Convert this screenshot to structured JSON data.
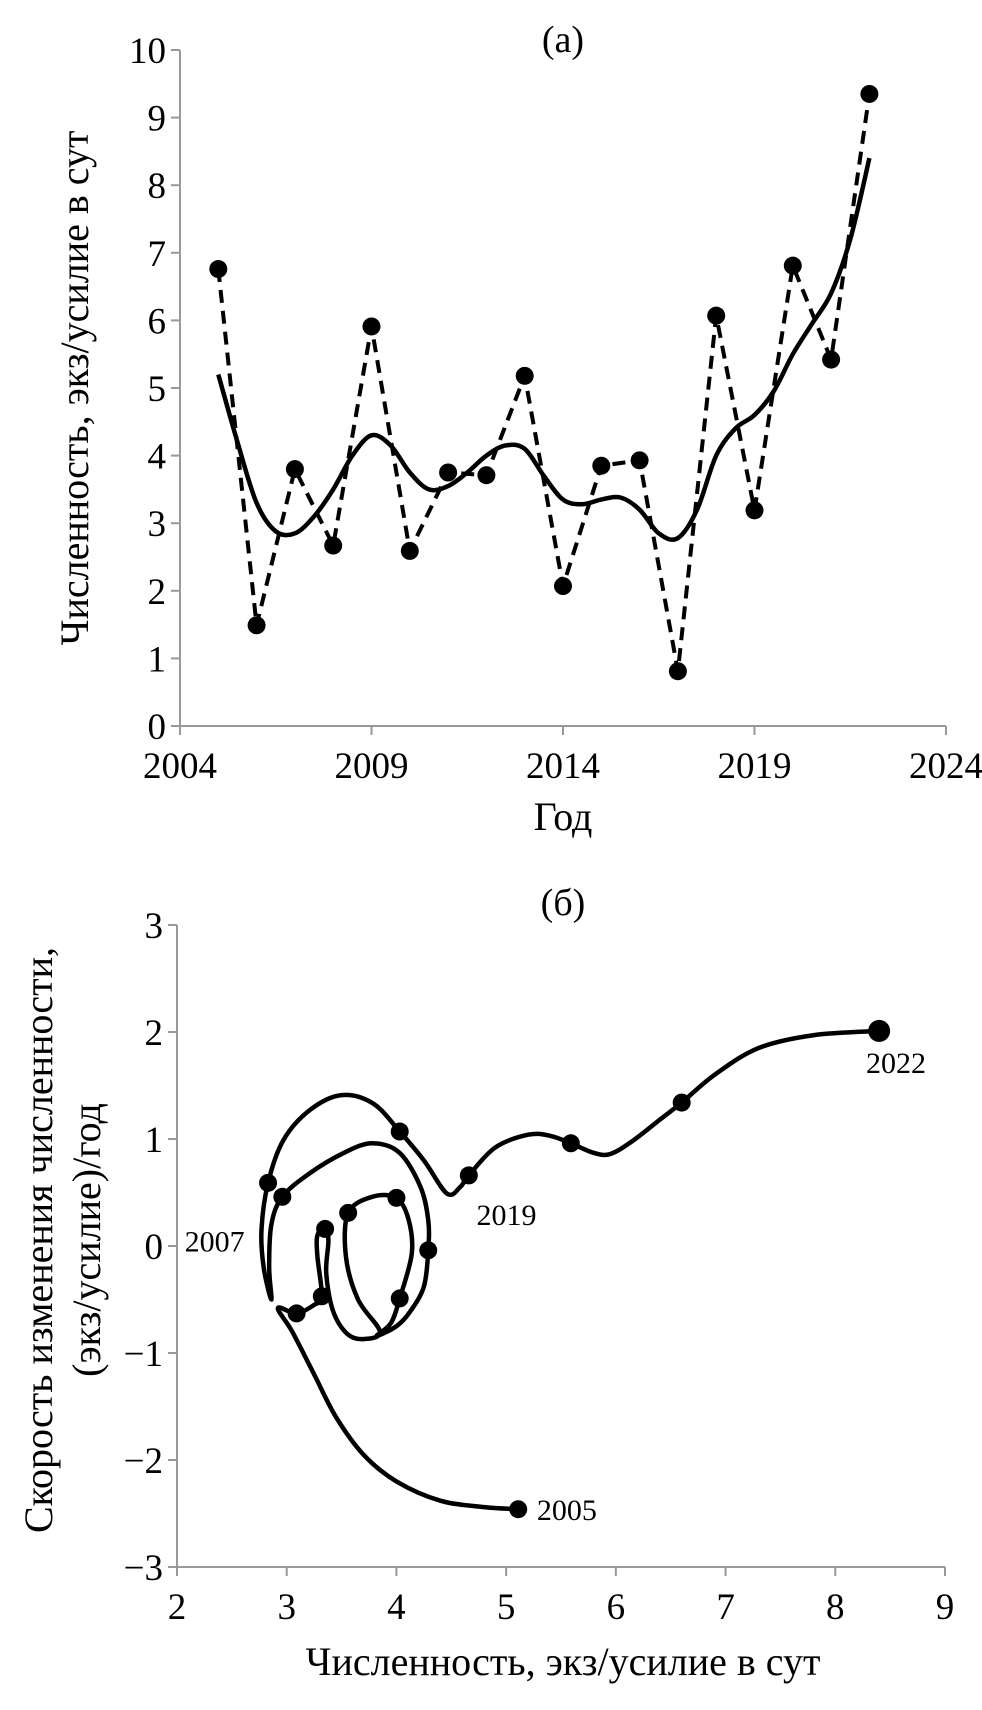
{
  "chart_data": [
    {
      "type": "line",
      "panel_label": "(а)",
      "xlabel": "Год",
      "ylabel": "Численность, экз/усилие в сут",
      "xlim": [
        2004,
        2024
      ],
      "ylim": [
        0,
        10
      ],
      "xticks": [
        2004,
        2009,
        2014,
        2019,
        2024
      ],
      "yticks": [
        0,
        1,
        2,
        3,
        4,
        5,
        6,
        7,
        8,
        9,
        10
      ],
      "grid": false,
      "series": [
        {
          "style": "dashed-with-markers",
          "x": [
            2005,
            2006,
            2007,
            2008,
            2009,
            2010,
            2011,
            2012,
            2013,
            2014,
            2015,
            2016,
            2017,
            2018,
            2019,
            2020,
            2021,
            2022
          ],
          "y": [
            6.76,
            1.49,
            3.8,
            2.67,
            5.91,
            2.59,
            3.75,
            3.71,
            5.18,
            2.07,
            3.85,
            3.93,
            0.81,
            6.07,
            3.19,
            6.81,
            5.42,
            9.35
          ]
        },
        {
          "style": "solid-smooth",
          "x": [
            2005,
            2005.5,
            2006,
            2006.5,
            2007,
            2007.5,
            2008,
            2008.5,
            2009,
            2009.5,
            2010,
            2010.5,
            2011,
            2011.5,
            2012,
            2012.5,
            2013,
            2013.5,
            2014,
            2014.5,
            2015,
            2015.5,
            2016,
            2016.5,
            2017,
            2017.5,
            2018,
            2018.5,
            2019,
            2019.5,
            2020,
            2020.5,
            2021,
            2021.5,
            2022
          ],
          "y": [
            5.2,
            4.2,
            3.3,
            2.88,
            2.85,
            3.1,
            3.5,
            4.0,
            4.3,
            4.15,
            3.75,
            3.5,
            3.55,
            3.75,
            4.0,
            4.15,
            4.1,
            3.7,
            3.35,
            3.28,
            3.35,
            3.38,
            3.2,
            2.85,
            2.78,
            3.2,
            4.0,
            4.4,
            4.6,
            4.95,
            5.5,
            5.95,
            6.4,
            7.2,
            8.4
          ]
        }
      ]
    },
    {
      "type": "line",
      "panel_label": "(б)",
      "xlabel": "Численность, экз/усилие в сут",
      "ylabel": [
        "Скорость изменения численности,",
        "(экз/усилие)/год"
      ],
      "xlim": [
        2,
        9
      ],
      "ylim": [
        -3,
        3
      ],
      "xticks": [
        2,
        3,
        4,
        5,
        6,
        7,
        8,
        9
      ],
      "yticks": [
        3,
        2,
        1,
        0,
        -1,
        -2,
        -3
      ],
      "ytick_labels": [
        "3",
        "2",
        "1",
        "0",
        "−1",
        "−2",
        "−3"
      ],
      "grid": false,
      "trajectory": [
        [
          5.11,
          -2.46
        ],
        [
          4.8,
          -2.44
        ],
        [
          4.4,
          -2.38
        ],
        [
          4.0,
          -2.2
        ],
        [
          3.7,
          -1.95
        ],
        [
          3.45,
          -1.6
        ],
        [
          3.25,
          -1.2
        ],
        [
          3.05,
          -0.8
        ],
        [
          2.92,
          -0.58
        ],
        [
          3.09,
          -0.63
        ],
        [
          3.25,
          -0.55
        ],
        [
          3.32,
          -0.47
        ],
        [
          3.28,
          -0.1
        ],
        [
          3.28,
          0.1
        ],
        [
          3.35,
          0.17
        ],
        [
          3.38,
          0.05
        ],
        [
          3.36,
          -0.25
        ],
        [
          3.42,
          -0.6
        ],
        [
          3.55,
          -0.82
        ],
        [
          3.7,
          -0.87
        ],
        [
          3.85,
          -0.8
        ],
        [
          3.65,
          -0.5
        ],
        [
          3.54,
          -0.1
        ],
        [
          3.56,
          0.31
        ],
        [
          3.78,
          0.46
        ],
        [
          4.0,
          0.45
        ],
        [
          4.11,
          0.25
        ],
        [
          4.14,
          -0.07
        ],
        [
          4.03,
          -0.49
        ],
        [
          3.95,
          -0.72
        ],
        [
          3.82,
          -0.84
        ],
        [
          4.0,
          -0.75
        ],
        [
          4.12,
          -0.62
        ],
        [
          4.25,
          -0.38
        ],
        [
          4.29,
          -0.04
        ],
        [
          4.29,
          0.24
        ],
        [
          4.22,
          0.55
        ],
        [
          4.03,
          0.87
        ],
        [
          3.78,
          0.96
        ],
        [
          3.52,
          0.87
        ],
        [
          3.21,
          0.68
        ],
        [
          2.96,
          0.46
        ],
        [
          2.86,
          0.2
        ],
        [
          2.84,
          -0.2
        ],
        [
          2.86,
          -0.5
        ],
        [
          2.79,
          -0.2
        ],
        [
          2.77,
          0.15
        ],
        [
          2.83,
          0.59
        ],
        [
          2.97,
          0.99
        ],
        [
          3.21,
          1.27
        ],
        [
          3.5,
          1.41
        ],
        [
          3.79,
          1.33
        ],
        [
          4.03,
          1.07
        ],
        [
          4.25,
          0.8
        ],
        [
          4.46,
          0.49
        ],
        [
          4.58,
          0.55
        ],
        [
          4.66,
          0.66
        ],
        [
          4.9,
          0.92
        ],
        [
          5.2,
          1.04
        ],
        [
          5.4,
          1.03
        ],
        [
          5.59,
          0.96
        ],
        [
          5.8,
          0.87
        ],
        [
          5.95,
          0.86
        ],
        [
          6.15,
          0.98
        ],
        [
          6.4,
          1.18
        ],
        [
          6.6,
          1.34
        ],
        [
          6.9,
          1.6
        ],
        [
          7.3,
          1.85
        ],
        [
          7.8,
          1.97
        ],
        [
          8.4,
          2.01
        ]
      ],
      "markers": [
        [
          5.11,
          -2.46
        ],
        [
          3.09,
          -0.63
        ],
        [
          3.32,
          -0.47
        ],
        [
          3.35,
          0.16
        ],
        [
          3.56,
          0.31
        ],
        [
          4.0,
          0.45
        ],
        [
          4.03,
          -0.49
        ],
        [
          4.29,
          -0.04
        ],
        [
          2.96,
          0.46
        ],
        [
          2.83,
          0.59
        ],
        [
          4.03,
          1.07
        ],
        [
          4.66,
          0.66
        ],
        [
          5.59,
          0.96
        ],
        [
          6.6,
          1.34
        ],
        [
          8.4,
          2.01
        ]
      ],
      "annotations": [
        {
          "text": "2007",
          "x": 2.07,
          "y": 0.05
        },
        {
          "text": "2019",
          "x": 4.73,
          "y": 0.3
        },
        {
          "text": "2005",
          "x": 5.28,
          "y": -2.46
        },
        {
          "text": "2022",
          "x": 8.28,
          "y": 1.72
        }
      ]
    }
  ]
}
